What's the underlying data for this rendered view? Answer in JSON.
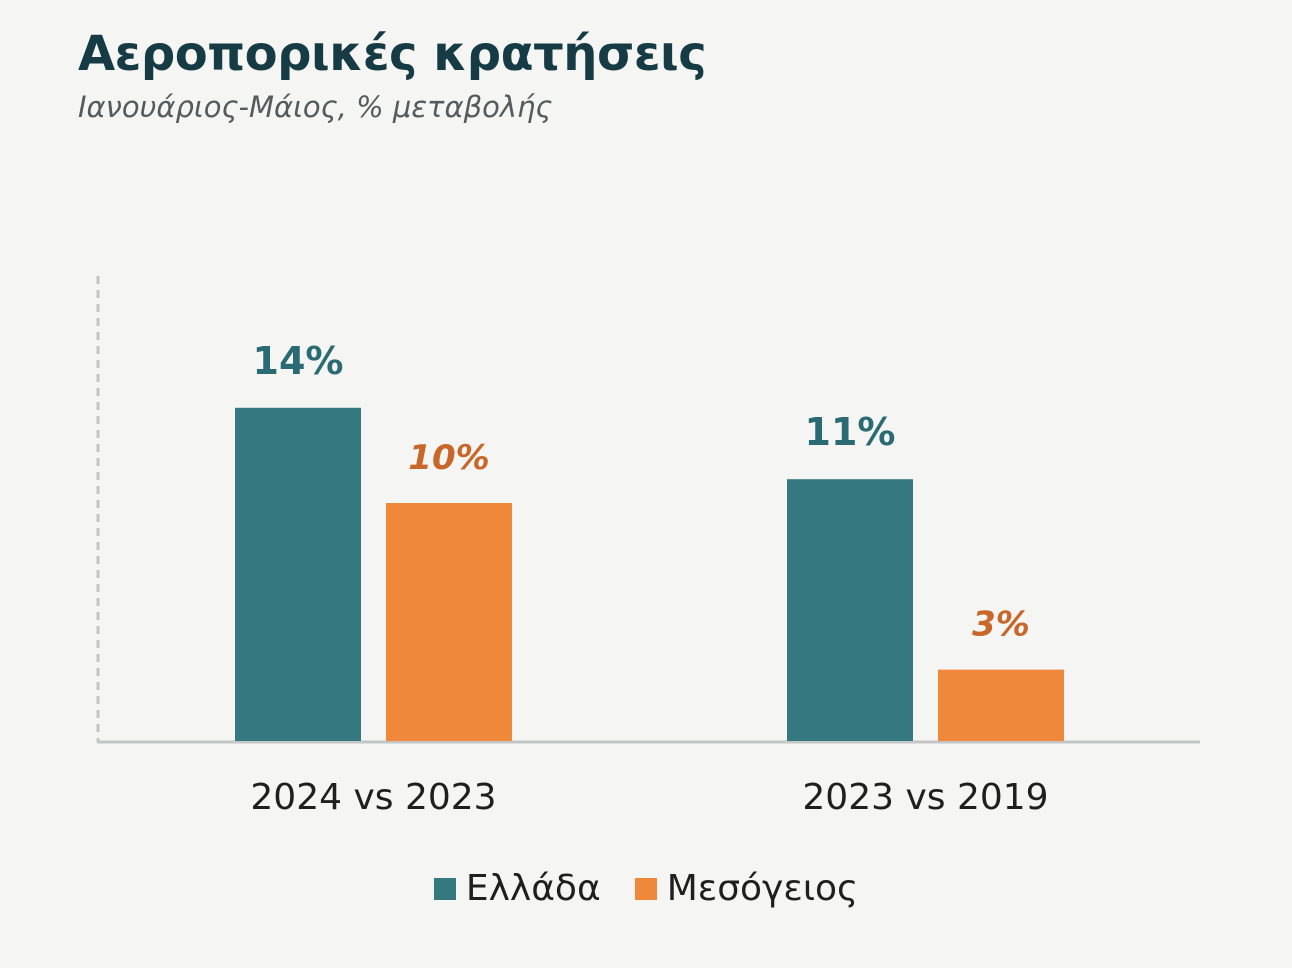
{
  "header": {
    "title": "Αεροπορικές κρατήσεις",
    "subtitle": "Ιανουάριος-Μάιος, % μεταβολής"
  },
  "colors": {
    "greece": "#357880",
    "mediterranean": "#f0883b",
    "greece_label": "#2a6a72",
    "mediterranean_label": "#c9672a",
    "axis": "#c4c6c6",
    "title": "#163b45"
  },
  "chart_data": {
    "type": "bar",
    "title": "Αεροπορικές κρατήσεις",
    "subtitle": "Ιανουάριος-Μάιος, % μεταβολής",
    "categories": [
      "2024 vs 2023",
      "2023 vs 2019"
    ],
    "series": [
      {
        "name": "Ελλάδα",
        "values": [
          14,
          11
        ],
        "labels": [
          "14%",
          "11%"
        ]
      },
      {
        "name": "Μεσόγειος",
        "values": [
          10,
          3
        ],
        "labels": [
          "10%",
          "3%"
        ]
      }
    ],
    "xlabel": "",
    "ylabel": "",
    "ylim": [
      0,
      20
    ],
    "grid": false,
    "legend_position": "bottom"
  }
}
